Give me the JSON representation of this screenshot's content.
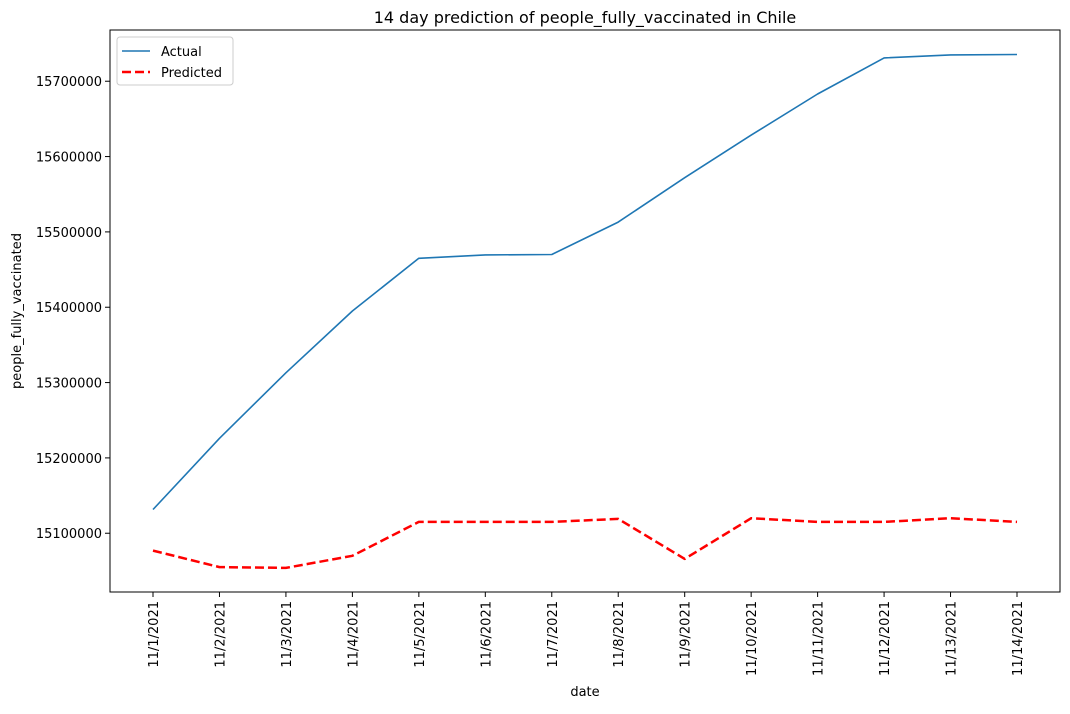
{
  "chart_data": {
    "type": "line",
    "title": "14 day prediction of people_fully_vaccinated in Chile",
    "xlabel": "date",
    "ylabel": "people_fully_vaccinated",
    "categories": [
      "11/1/2021",
      "11/2/2021",
      "11/3/2021",
      "11/4/2021",
      "11/5/2021",
      "11/6/2021",
      "11/7/2021",
      "11/8/2021",
      "11/9/2021",
      "11/10/2021",
      "11/11/2021",
      "11/12/2021",
      "11/13/2021",
      "11/14/2021"
    ],
    "y_ticks": [
      15100000,
      15200000,
      15300000,
      15400000,
      15500000,
      15600000,
      15700000
    ],
    "ylim": [
      15022000,
      15768000
    ],
    "grid": false,
    "legend_position": "top-left",
    "series": [
      {
        "name": "Actual",
        "color": "#1f77b4",
        "style": "solid",
        "values": [
          15131500,
          15226000,
          15313000,
          15395000,
          15465000,
          15469500,
          15470000,
          15513000,
          15572000,
          15628500,
          15683000,
          15731000,
          15735000,
          15735500
        ]
      },
      {
        "name": "Predicted",
        "color": "#ff0000",
        "style": "dashed",
        "values": [
          15077000,
          15055000,
          15054000,
          15070000,
          15115000,
          15115000,
          15115000,
          15119000,
          15066000,
          15120000,
          15115000,
          15115000,
          15120000,
          15115000
        ]
      }
    ]
  }
}
